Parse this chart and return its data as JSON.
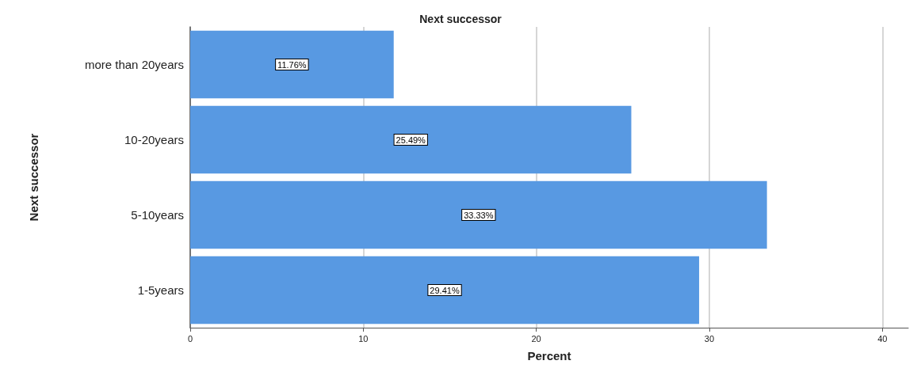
{
  "chart_data": {
    "type": "bar",
    "orientation": "horizontal",
    "title": "Next successor",
    "xlabel": "Percent",
    "ylabel": "Next successor",
    "categories": [
      "more than 20years",
      "10-20years",
      "5-10years",
      "1-5years"
    ],
    "values": [
      11.76,
      25.49,
      33.33,
      29.41
    ],
    "value_labels": [
      "11.76%",
      "25.49%",
      "33.33%",
      "29.41%"
    ],
    "color": "#5899e2",
    "xlim": [
      0,
      41.5
    ],
    "xticks": [
      0,
      10,
      20,
      30,
      40
    ],
    "grid": "x"
  }
}
